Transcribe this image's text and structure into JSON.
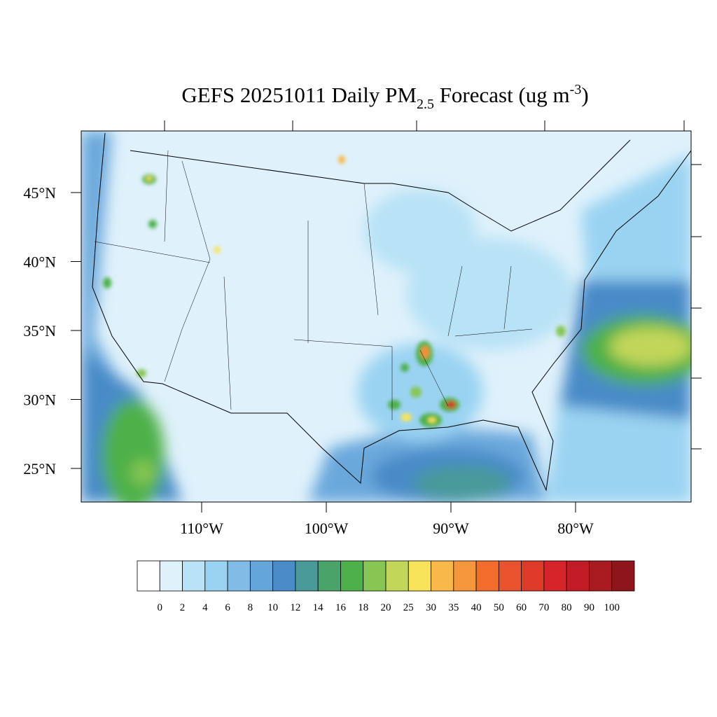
{
  "title": {
    "main": "GEFS 20251011 Daily PM",
    "subscript": "2.5",
    "rest": " Forecast (ug m",
    "superscript": "-3",
    "end": ")"
  },
  "latitude_labels": [
    {
      "value": 45,
      "label": "45°N"
    },
    {
      "value": 40,
      "label": "40°N"
    },
    {
      "value": 35,
      "label": "35°N"
    },
    {
      "value": 30,
      "label": "30°N"
    },
    {
      "value": 25,
      "label": "25°N"
    }
  ],
  "longitude_labels": [
    {
      "value": -110,
      "label": "110°W"
    },
    {
      "value": -100,
      "label": "100°W"
    },
    {
      "value": -90,
      "label": "90°W"
    },
    {
      "value": -80,
      "label": "80°W"
    }
  ],
  "colorbar": {
    "levels": [
      0,
      2,
      4,
      6,
      8,
      10,
      12,
      14,
      16,
      18,
      20,
      25,
      30,
      35,
      40,
      50,
      60,
      70,
      80,
      90,
      100
    ],
    "colors": [
      "#ffffff",
      "#dff1fb",
      "#b8e2f6",
      "#9ad3f2",
      "#80bce6",
      "#64a6da",
      "#4a8bc8",
      "#4a9a9a",
      "#4aa46a",
      "#4db04a",
      "#86c653",
      "#c2d65a",
      "#f8e45a",
      "#f8b84a",
      "#f6963c",
      "#f26c2c",
      "#e8522c",
      "#de3a28",
      "#d7242a",
      "#c11c26",
      "#a81a20",
      "#8e161a"
    ]
  }
}
